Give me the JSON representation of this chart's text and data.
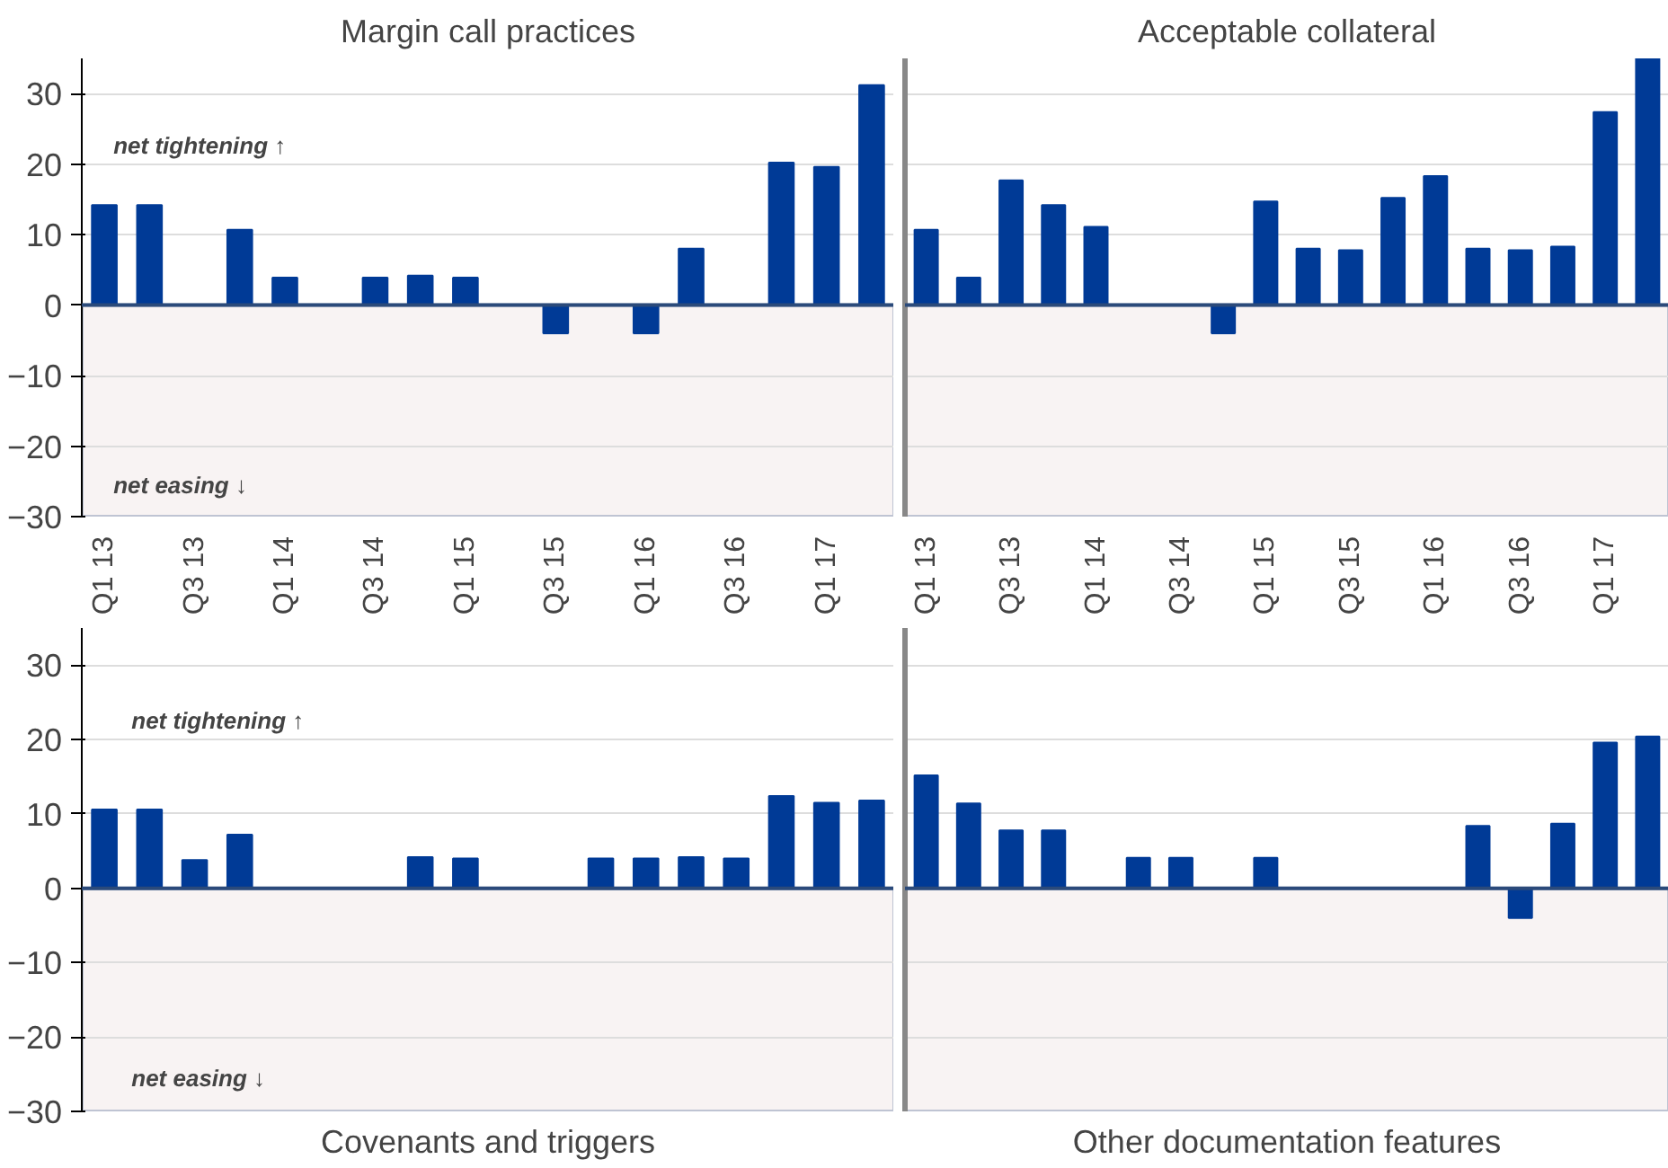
{
  "chart_data": [
    {
      "type": "bar",
      "title": "Margin call practices",
      "categories": [
        "Q1 13",
        null,
        "Q3 13",
        null,
        "Q1 14",
        null,
        "Q3 14",
        null,
        "Q1 15",
        null,
        "Q3 15",
        null,
        "Q1 16",
        null,
        "Q3 16",
        null,
        "Q1 17",
        null
      ],
      "values": [
        14.2,
        14.2,
        0,
        10.7,
        3.9,
        0,
        3.9,
        4.2,
        3.9,
        0,
        -4,
        0,
        -4,
        8.0,
        0,
        20.2,
        19.6,
        31.2
      ],
      "ref_lines": [
        {
          "axis": "y",
          "value": 0,
          "color": "#2b4a7a"
        }
      ],
      "color": "#003a96",
      "ylim": [
        -30,
        35
      ],
      "yticks": [
        -30,
        -20,
        -10,
        0,
        10,
        20,
        30
      ],
      "grid": "y",
      "bands": [
        {
          "axis": "y",
          "from": -30,
          "to": 0,
          "color": "#f8f3f3"
        }
      ],
      "annotations": [
        "net tightening ↑",
        "net easing ↓"
      ]
    },
    {
      "type": "bar",
      "title": "Acceptable collateral",
      "categories": [
        "Q1 13",
        null,
        "Q3 13",
        null,
        "Q1 14",
        null,
        "Q3 14",
        null,
        "Q1 15",
        null,
        "Q3 15",
        null,
        "Q1 16",
        null,
        "Q3 16",
        null,
        "Q1 17",
        null
      ],
      "values": [
        10.7,
        3.9,
        17.7,
        14.2,
        11.1,
        0,
        0,
        -4,
        14.7,
        8.0,
        7.8,
        15.2,
        18.3,
        8.0,
        7.8,
        8.3,
        27.4,
        35
      ],
      "ref_lines": [
        {
          "axis": "y",
          "value": 0,
          "color": "#2b4a7a"
        }
      ],
      "color": "#003a96",
      "ylim": [
        -30,
        35
      ],
      "yticks": [
        -30,
        -20,
        -10,
        0,
        10,
        20,
        30
      ],
      "grid": "y",
      "tick_labels": "x",
      "bands": [
        {
          "axis": "y",
          "from": -30,
          "to": 0,
          "color": "#f8f3f3"
        }
      ]
    },
    {
      "type": "bar",
      "title": "Covenants and triggers",
      "categories": [
        null,
        null,
        null,
        null,
        null,
        null,
        null,
        null,
        null,
        null,
        null,
        null,
        null,
        null,
        null,
        null,
        null,
        null
      ],
      "values": [
        10.6,
        10.6,
        3.8,
        7.2,
        0,
        0,
        0,
        4.2,
        4.0,
        0,
        0,
        4.0,
        4.0,
        4.2,
        4.0,
        12.4,
        11.5,
        11.8
      ],
      "ref_lines": [
        {
          "axis": "y",
          "value": 0,
          "color": "#2b4a7a"
        }
      ],
      "color": "#003a96",
      "ylim": [
        -30,
        35
      ],
      "yticks": [
        -30,
        -20,
        -10,
        0,
        10,
        20,
        30
      ],
      "grid": "y",
      "tick_labels": "y",
      "bands": [
        {
          "axis": "y",
          "from": -30,
          "to": 0,
          "color": "#f8f3f3"
        }
      ],
      "annotations": [
        "net tightening ↑",
        "net easing ↓"
      ]
    },
    {
      "type": "bar",
      "title": "Other documentation features",
      "categories": [
        null,
        null,
        null,
        null,
        null,
        null,
        null,
        null,
        null,
        null,
        null,
        null,
        null,
        null,
        null,
        null,
        null,
        null
      ],
      "values": [
        15.2,
        11.4,
        7.8,
        7.8,
        0,
        4.1,
        4.1,
        0,
        4.1,
        0,
        0,
        0,
        0,
        8.4,
        -4,
        8.7,
        19.6,
        20.4
      ],
      "ref_lines": [
        {
          "axis": "y",
          "value": 0,
          "color": "#2b4a7a"
        }
      ],
      "color": "#003a96",
      "ylim": [
        -30,
        35
      ],
      "yticks": [
        -30,
        -20,
        -10,
        0,
        10,
        20,
        30
      ],
      "grid": "y",
      "tick_labels": false,
      "bands": [
        {
          "axis": "y",
          "from": -30,
          "to": 0,
          "color": "#f8f3f3"
        }
      ]
    }
  ]
}
